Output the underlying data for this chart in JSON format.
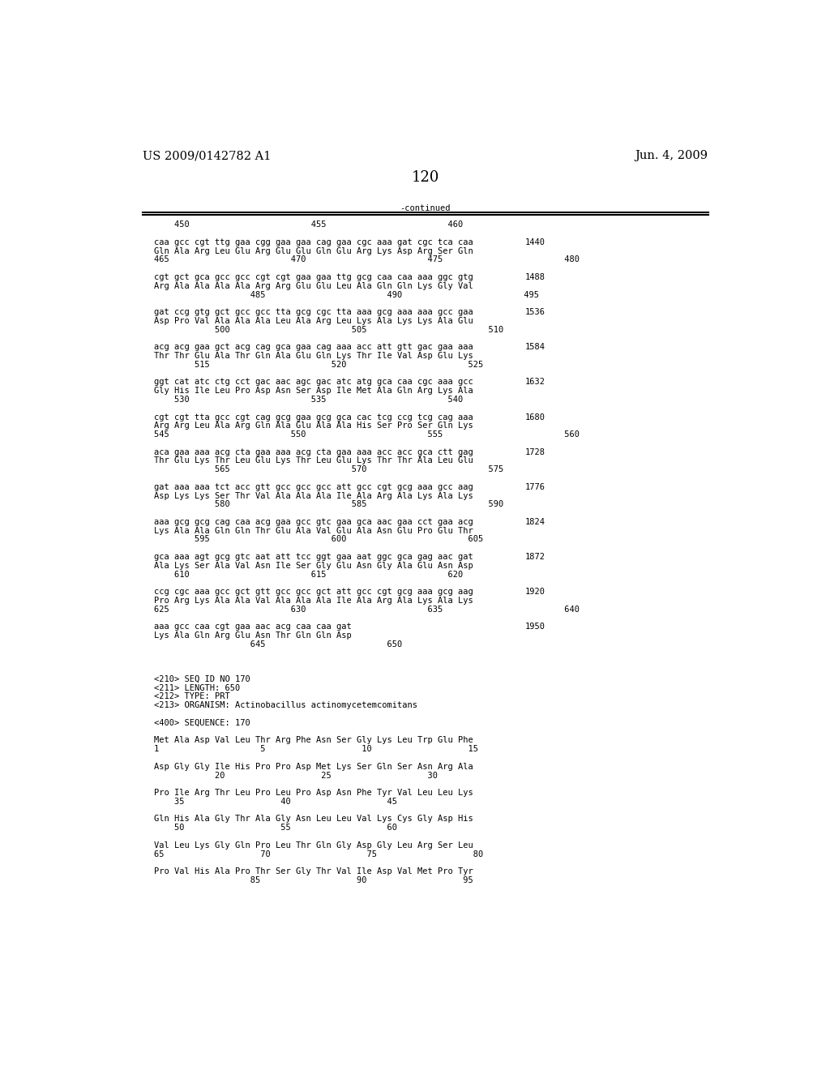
{
  "header_left": "US 2009/0142782 A1",
  "header_right": "Jun. 4, 2009",
  "page_number": "120",
  "continued_label": "-continued",
  "background_color": "#ffffff",
  "text_color": "#000000",
  "content": [
    {
      "type": "ruler",
      "text": "    450                        455                        460"
    },
    {
      "type": "blank"
    },
    {
      "type": "seq_dna",
      "text": "caa gcc cgt ttg gaa cgg gaa gaa cag gaa cgc aaa gat cgc tca caa",
      "num": "1440"
    },
    {
      "type": "seq_aa",
      "text": "Gln Ala Arg Leu Glu Arg Glu Glu Gln Glu Arg Lys Asp Arg Ser Gln"
    },
    {
      "type": "ruler",
      "text": "465                        470                        475                        480"
    },
    {
      "type": "blank"
    },
    {
      "type": "seq_dna",
      "text": "cgt gct gca gcc gcc cgt cgt gaa gaa ttg gcg caa caa aaa ggc gtg",
      "num": "1488"
    },
    {
      "type": "seq_aa",
      "text": "Arg Ala Ala Ala Ala Arg Arg Glu Glu Leu Ala Gln Gln Lys Gly Val"
    },
    {
      "type": "ruler",
      "text": "                   485                        490                        495"
    },
    {
      "type": "blank"
    },
    {
      "type": "seq_dna",
      "text": "gat ccg gtg gct gcc gcc tta gcg cgc tta aaa gcg aaa aaa gcc gaa",
      "num": "1536"
    },
    {
      "type": "seq_aa",
      "text": "Asp Pro Val Ala Ala Ala Leu Ala Arg Leu Lys Ala Lys Lys Ala Glu"
    },
    {
      "type": "ruler",
      "text": "            500                        505                        510"
    },
    {
      "type": "blank"
    },
    {
      "type": "seq_dna",
      "text": "acg acg gaa gct acg cag gca gaa cag aaa acc att gtt gac gaa aaa",
      "num": "1584"
    },
    {
      "type": "seq_aa",
      "text": "Thr Thr Glu Ala Thr Gln Ala Glu Gln Lys Thr Ile Val Asp Glu Lys"
    },
    {
      "type": "ruler",
      "text": "        515                        520                        525"
    },
    {
      "type": "blank"
    },
    {
      "type": "seq_dna",
      "text": "ggt cat atc ctg cct gac aac agc gac atc atg gca caa cgc aaa gcc",
      "num": "1632"
    },
    {
      "type": "seq_aa",
      "text": "Gly His Ile Leu Pro Asp Asn Ser Asp Ile Met Ala Gln Arg Lys Ala"
    },
    {
      "type": "ruler",
      "text": "    530                        535                        540"
    },
    {
      "type": "blank"
    },
    {
      "type": "seq_dna",
      "text": "cgt cgt tta gcc cgt cag gcg gaa gcg gca cac tcg ccg tcg cag aaa",
      "num": "1680"
    },
    {
      "type": "seq_aa",
      "text": "Arg Arg Leu Ala Arg Gln Ala Glu Ala Ala His Ser Pro Ser Gln Lys"
    },
    {
      "type": "ruler",
      "text": "545                        550                        555                        560"
    },
    {
      "type": "blank"
    },
    {
      "type": "seq_dna",
      "text": "aca gaa aaa acg cta gaa aaa acg cta gaa aaa acc acc gca ctt gag",
      "num": "1728"
    },
    {
      "type": "seq_aa",
      "text": "Thr Glu Lys Thr Leu Glu Lys Thr Leu Glu Lys Thr Thr Ala Leu Glu"
    },
    {
      "type": "ruler",
      "text": "            565                        570                        575"
    },
    {
      "type": "blank"
    },
    {
      "type": "seq_dna",
      "text": "gat aaa aaa tct acc gtt gcc gcc gcc att gcc cgt gcg aaa gcc aag",
      "num": "1776"
    },
    {
      "type": "seq_aa",
      "text": "Asp Lys Lys Ser Thr Val Ala Ala Ala Ile Ala Arg Ala Lys Ala Lys"
    },
    {
      "type": "ruler",
      "text": "            580                        585                        590"
    },
    {
      "type": "blank"
    },
    {
      "type": "seq_dna",
      "text": "aaa gcg gcg cag caa acg gaa gcc gtc gaa gca aac gaa cct gaa acg",
      "num": "1824"
    },
    {
      "type": "seq_aa",
      "text": "Lys Ala Ala Gln Gln Thr Glu Ala Val Glu Ala Asn Glu Pro Glu Thr"
    },
    {
      "type": "ruler",
      "text": "        595                        600                        605"
    },
    {
      "type": "blank"
    },
    {
      "type": "seq_dna",
      "text": "gca aaa agt gcg gtc aat att tcc ggt gaa aat ggc gca gag aac gat",
      "num": "1872"
    },
    {
      "type": "seq_aa",
      "text": "Ala Lys Ser Ala Val Asn Ile Ser Gly Glu Asn Gly Ala Glu Asn Asp"
    },
    {
      "type": "ruler",
      "text": "    610                        615                        620"
    },
    {
      "type": "blank"
    },
    {
      "type": "seq_dna",
      "text": "ccg cgc aaa gcc gct gtt gcc gcc gct att gcc cgt gcg aaa gcg aag",
      "num": "1920"
    },
    {
      "type": "seq_aa",
      "text": "Pro Arg Lys Ala Ala Val Ala Ala Ala Ile Ala Arg Ala Lys Ala Lys"
    },
    {
      "type": "ruler",
      "text": "625                        630                        635                        640"
    },
    {
      "type": "blank"
    },
    {
      "type": "seq_dna",
      "text": "aaa gcc caa cgt gaa aac acg caa caa gat",
      "num": "1950"
    },
    {
      "type": "seq_aa",
      "text": "Lys Ala Gln Arg Glu Asn Thr Gln Gln Asp"
    },
    {
      "type": "ruler",
      "text": "                   645                        650"
    },
    {
      "type": "blank"
    },
    {
      "type": "blank"
    },
    {
      "type": "blank"
    },
    {
      "type": "meta",
      "text": "<210> SEQ ID NO 170"
    },
    {
      "type": "meta",
      "text": "<211> LENGTH: 650"
    },
    {
      "type": "meta",
      "text": "<212> TYPE: PRT"
    },
    {
      "type": "meta",
      "text": "<213> ORGANISM: Actinobacillus actinomycetemcomitans"
    },
    {
      "type": "blank"
    },
    {
      "type": "meta",
      "text": "<400> SEQUENCE: 170"
    },
    {
      "type": "blank"
    },
    {
      "type": "seq_aa",
      "text": "Met Ala Asp Val Leu Thr Arg Phe Asn Ser Gly Lys Leu Trp Glu Phe"
    },
    {
      "type": "ruler",
      "text": "1                    5                   10                   15"
    },
    {
      "type": "blank"
    },
    {
      "type": "seq_aa",
      "text": "Asp Gly Gly Ile His Pro Pro Asp Met Lys Ser Gln Ser Asn Arg Ala"
    },
    {
      "type": "ruler",
      "text": "            20                   25                   30"
    },
    {
      "type": "blank"
    },
    {
      "type": "seq_aa",
      "text": "Pro Ile Arg Thr Leu Pro Leu Pro Asp Asn Phe Tyr Val Leu Leu Lys"
    },
    {
      "type": "ruler",
      "text": "    35                   40                   45"
    },
    {
      "type": "blank"
    },
    {
      "type": "seq_aa",
      "text": "Gln His Ala Gly Thr Ala Gly Asn Leu Leu Val Lys Cys Gly Asp His"
    },
    {
      "type": "ruler",
      "text": "    50                   55                   60"
    },
    {
      "type": "blank"
    },
    {
      "type": "seq_aa",
      "text": "Val Leu Lys Gly Gln Pro Leu Thr Gln Gly Asp Gly Leu Arg Ser Leu"
    },
    {
      "type": "ruler",
      "text": "65                   70                   75                   80"
    },
    {
      "type": "blank"
    },
    {
      "type": "seq_aa",
      "text": "Pro Val His Ala Pro Thr Ser Gly Thr Val Ile Asp Val Met Pro Tyr"
    },
    {
      "type": "ruler",
      "text": "                   85                   90                   95"
    }
  ]
}
